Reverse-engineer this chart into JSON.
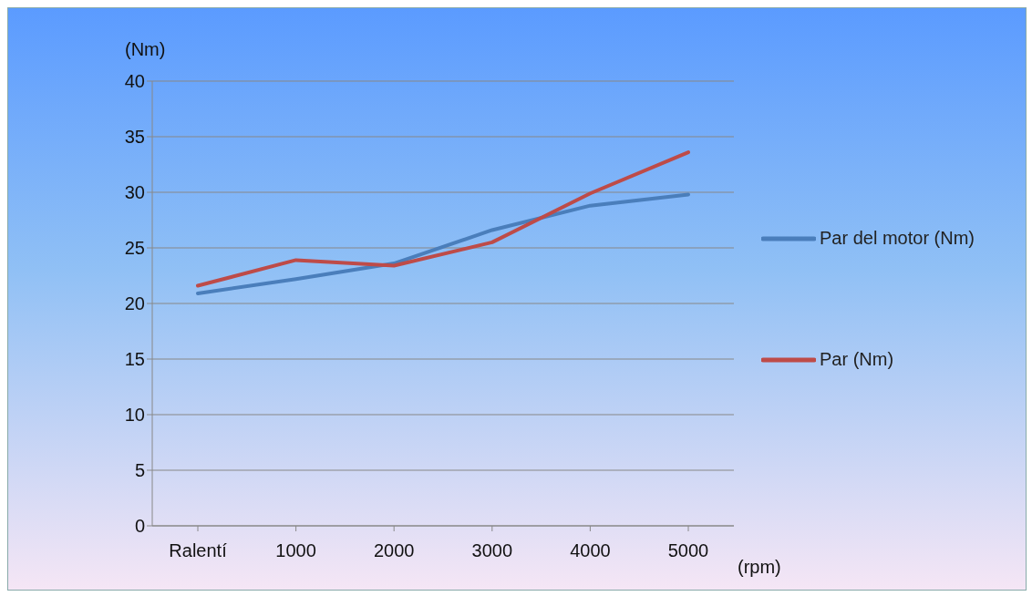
{
  "chart_data": {
    "type": "line",
    "ylabel": "(Nm)",
    "xlabel": "(rpm)",
    "categories": [
      "Ralentí",
      "1000",
      "2000",
      "3000",
      "4000",
      "5000"
    ],
    "series": [
      {
        "name": "Par del motor (Nm)",
        "color": "#4a7ebb",
        "values": [
          20.9,
          22.2,
          23.6,
          26.6,
          28.8,
          29.8
        ]
      },
      {
        "name": "Par (Nm)",
        "color": "#be4b48",
        "values": [
          21.6,
          23.9,
          23.4,
          25.5,
          29.9,
          33.6
        ]
      }
    ],
    "ylim": [
      0,
      40
    ],
    "yticks": [
      0,
      5,
      10,
      15,
      20,
      25,
      30,
      35,
      40
    ],
    "grid": "y",
    "legend": "right",
    "marker": "none",
    "line_style": "solid"
  }
}
